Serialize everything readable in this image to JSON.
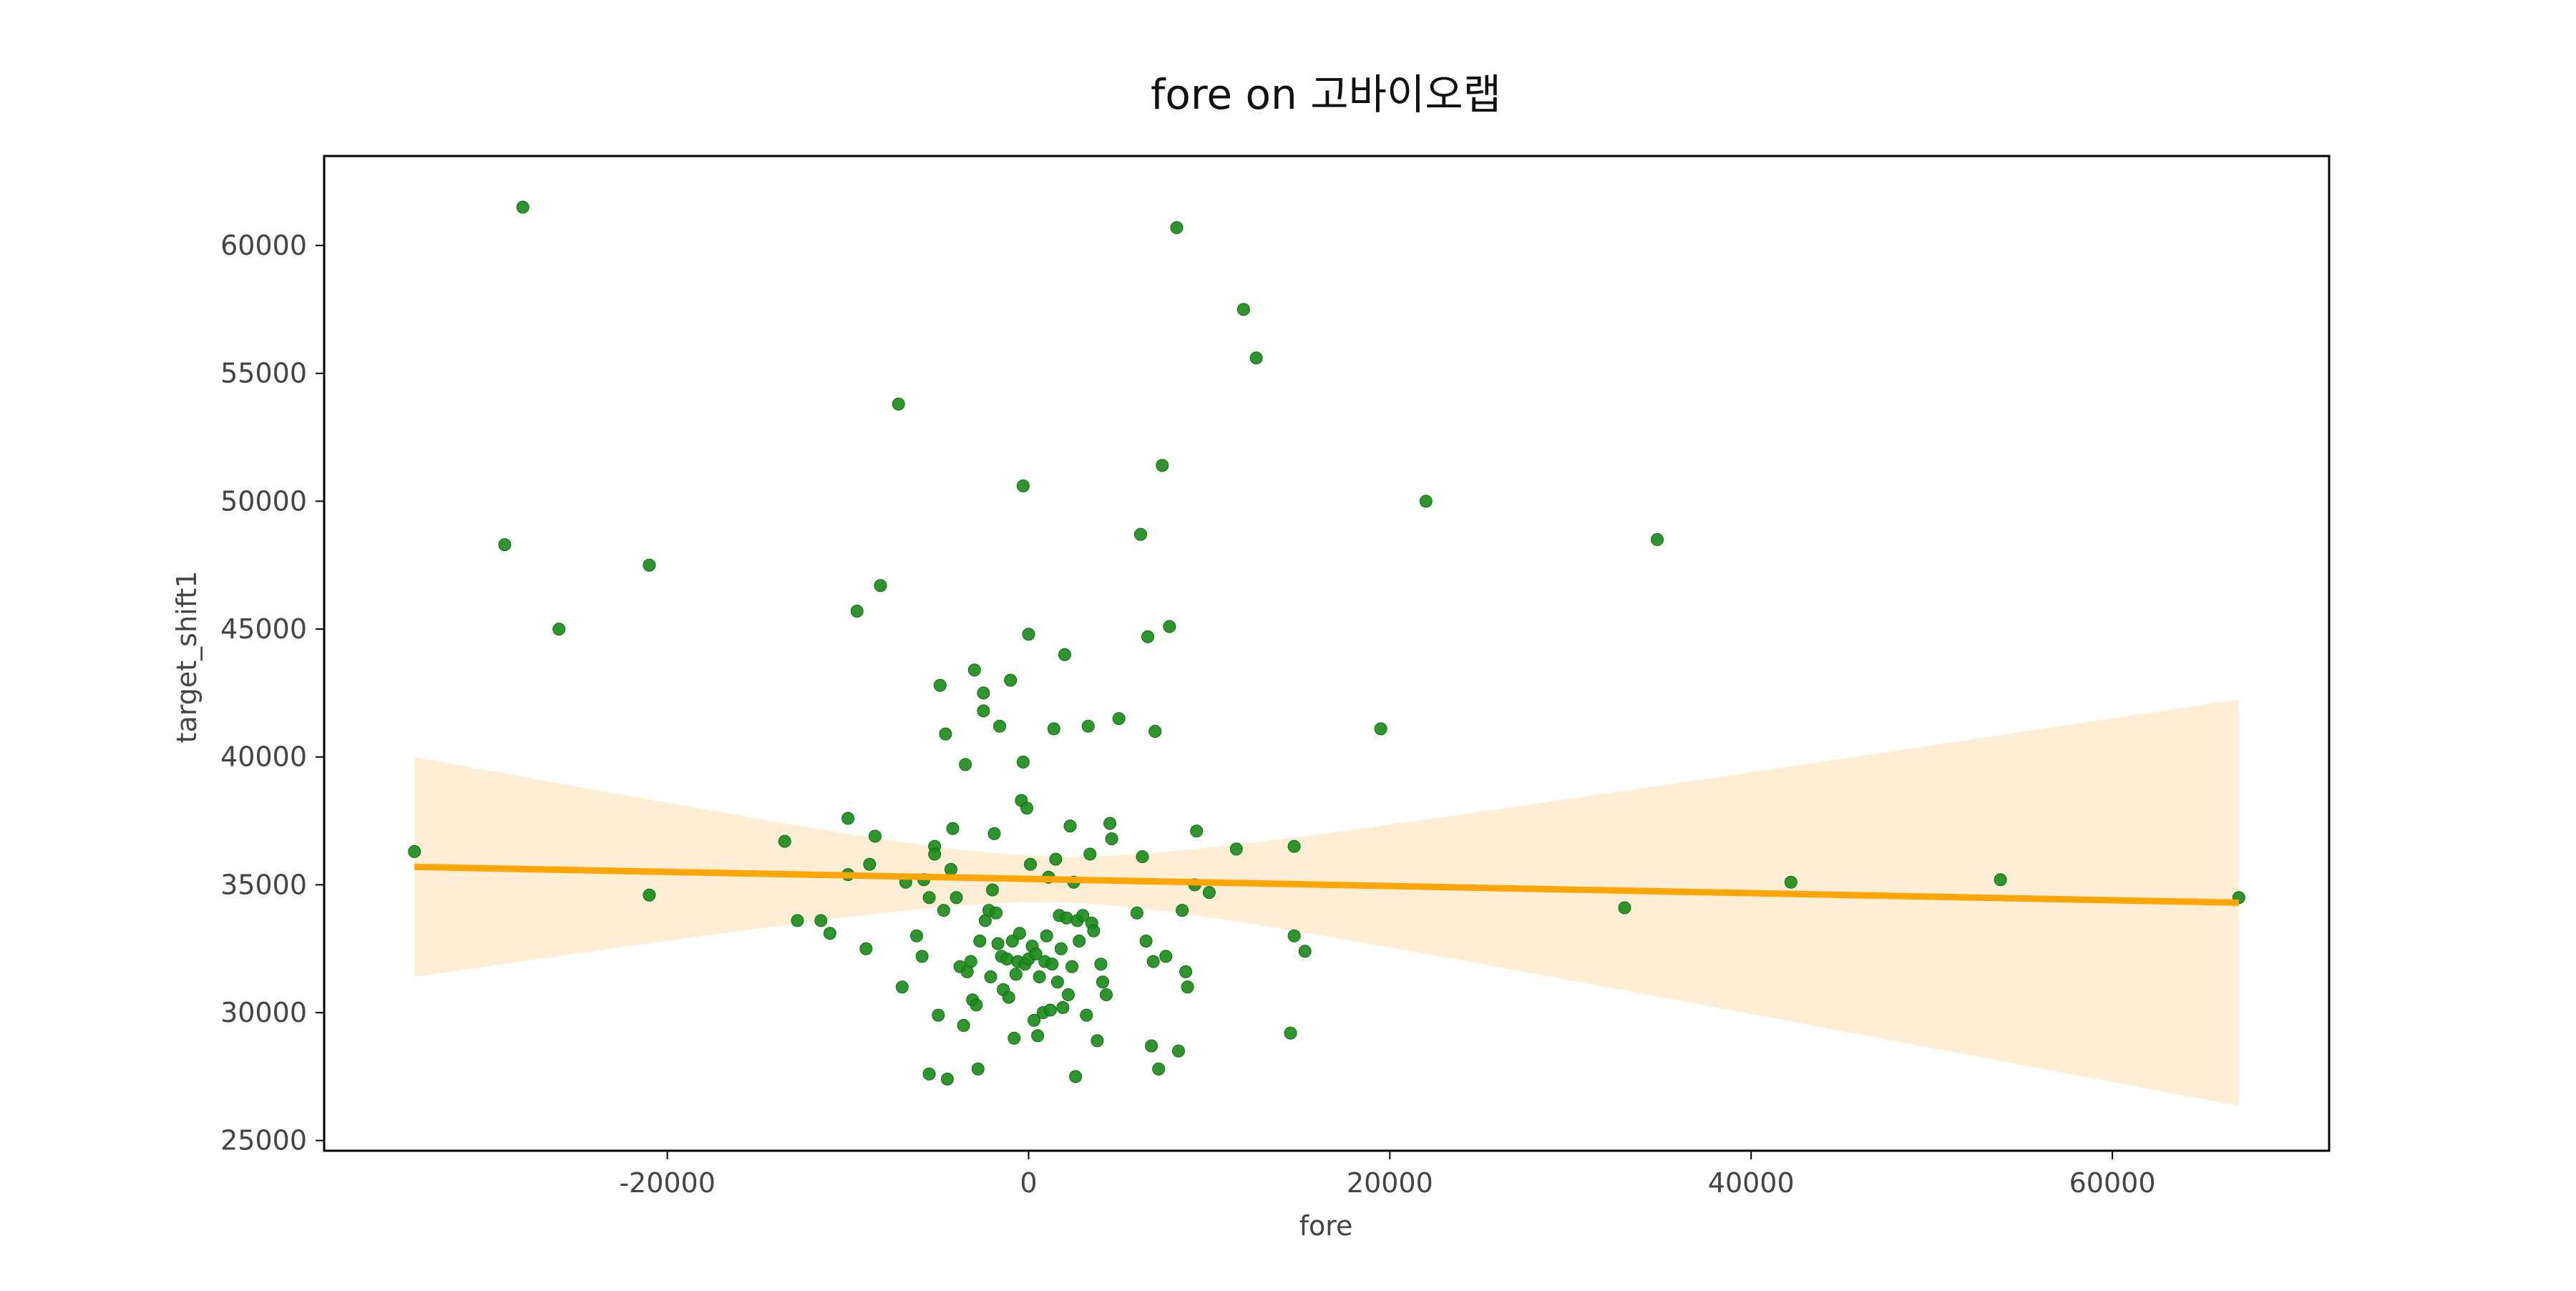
{
  "chart_data": {
    "type": "scatter",
    "title": "fore on 고바이오랩",
    "xlabel": "fore",
    "ylabel": "target_shift1",
    "xlim": [
      -39000,
      72000
    ],
    "ylim": [
      24600,
      63500
    ],
    "xticks": [
      -20000,
      0,
      20000,
      40000,
      60000
    ],
    "xtick_labels": [
      "-20000",
      "0",
      "20000",
      "40000",
      "60000"
    ],
    "yticks": [
      25000,
      30000,
      35000,
      40000,
      45000,
      50000,
      55000,
      60000
    ],
    "ytick_labels": [
      "25000",
      "30000",
      "35000",
      "40000",
      "45000",
      "50000",
      "55000",
      "60000"
    ],
    "grid": false,
    "colors": {
      "points": "#1a8a1a",
      "regression": "#ffa500",
      "band": "#ffeed6",
      "frame": "#000000"
    },
    "regression": {
      "x": [
        -34000,
        67000
      ],
      "y": [
        35700,
        34300
      ],
      "band_upper": [
        39900,
        42200
      ],
      "band_lower": [
        31300,
        26300
      ],
      "band_center_x": 1500
    },
    "points": [
      [
        -34000,
        36300
      ],
      [
        -28000,
        61500
      ],
      [
        -29000,
        48300
      ],
      [
        -26000,
        45000
      ],
      [
        -21000,
        47500
      ],
      [
        -21000,
        34600
      ],
      [
        -13500,
        36700
      ],
      [
        -12800,
        33600
      ],
      [
        -11500,
        33600
      ],
      [
        -11000,
        33100
      ],
      [
        -10000,
        37600
      ],
      [
        -10000,
        35400
      ],
      [
        -9500,
        45700
      ],
      [
        -9000,
        32500
      ],
      [
        -8800,
        35800
      ],
      [
        -8500,
        36900
      ],
      [
        -8200,
        46700
      ],
      [
        -7200,
        53800
      ],
      [
        -7000,
        31000
      ],
      [
        -6800,
        35100
      ],
      [
        -6200,
        33000
      ],
      [
        -5900,
        32200
      ],
      [
        -5800,
        35200
      ],
      [
        -5500,
        27600
      ],
      [
        -5500,
        34500
      ],
      [
        -5200,
        36500
      ],
      [
        -5200,
        36200
      ],
      [
        -5000,
        29900
      ],
      [
        -4900,
        42800
      ],
      [
        -4700,
        34000
      ],
      [
        -4600,
        40900
      ],
      [
        -4500,
        27400
      ],
      [
        -4300,
        35600
      ],
      [
        -4200,
        37200
      ],
      [
        -4000,
        34500
      ],
      [
        -3800,
        31800
      ],
      [
        -3600,
        29500
      ],
      [
        -3500,
        39700
      ],
      [
        -3400,
        31600
      ],
      [
        -3200,
        32000
      ],
      [
        -3100,
        30500
      ],
      [
        -3000,
        43400
      ],
      [
        -2900,
        30300
      ],
      [
        -2800,
        27800
      ],
      [
        -2700,
        32800
      ],
      [
        -2500,
        42500
      ],
      [
        -2500,
        41800
      ],
      [
        -2400,
        33600
      ],
      [
        -2200,
        34000
      ],
      [
        -2100,
        31400
      ],
      [
        -2000,
        34800
      ],
      [
        -1900,
        37000
      ],
      [
        -1800,
        33900
      ],
      [
        -1700,
        32700
      ],
      [
        -1600,
        41200
      ],
      [
        -1500,
        32200
      ],
      [
        -1400,
        30900
      ],
      [
        -1200,
        32100
      ],
      [
        -1100,
        30600
      ],
      [
        -1000,
        43000
      ],
      [
        -900,
        32800
      ],
      [
        -800,
        29000
      ],
      [
        -700,
        31500
      ],
      [
        -600,
        32000
      ],
      [
        -500,
        33100
      ],
      [
        -400,
        38300
      ],
      [
        -300,
        50600
      ],
      [
        -300,
        39800
      ],
      [
        -200,
        31900
      ],
      [
        -100,
        38000
      ],
      [
        0,
        44800
      ],
      [
        0,
        32100
      ],
      [
        100,
        35800
      ],
      [
        200,
        32600
      ],
      [
        300,
        29700
      ],
      [
        400,
        32300
      ],
      [
        500,
        29100
      ],
      [
        600,
        31400
      ],
      [
        800,
        30000
      ],
      [
        900,
        32000
      ],
      [
        1000,
        33000
      ],
      [
        1100,
        35300
      ],
      [
        1200,
        30100
      ],
      [
        1300,
        31900
      ],
      [
        1400,
        41100
      ],
      [
        1500,
        36000
      ],
      [
        1600,
        31200
      ],
      [
        1700,
        33800
      ],
      [
        1800,
        32500
      ],
      [
        1900,
        30200
      ],
      [
        2000,
        44000
      ],
      [
        2100,
        33700
      ],
      [
        2200,
        30700
      ],
      [
        2300,
        37300
      ],
      [
        2400,
        31800
      ],
      [
        2500,
        35100
      ],
      [
        2600,
        27500
      ],
      [
        2700,
        33600
      ],
      [
        2800,
        32800
      ],
      [
        3000,
        33800
      ],
      [
        3200,
        29900
      ],
      [
        3300,
        41200
      ],
      [
        3400,
        36200
      ],
      [
        3500,
        33500
      ],
      [
        3600,
        33200
      ],
      [
        3800,
        28900
      ],
      [
        4000,
        31900
      ],
      [
        4100,
        31200
      ],
      [
        4300,
        30700
      ],
      [
        4500,
        37400
      ],
      [
        4600,
        36800
      ],
      [
        5000,
        41500
      ],
      [
        6000,
        33900
      ],
      [
        6200,
        48700
      ],
      [
        6300,
        36100
      ],
      [
        6500,
        32800
      ],
      [
        6600,
        44700
      ],
      [
        6800,
        28700
      ],
      [
        6900,
        32000
      ],
      [
        7000,
        41000
      ],
      [
        7200,
        27800
      ],
      [
        7400,
        51400
      ],
      [
        7600,
        32200
      ],
      [
        7800,
        45100
      ],
      [
        8200,
        60700
      ],
      [
        8300,
        28500
      ],
      [
        8500,
        34000
      ],
      [
        8700,
        31600
      ],
      [
        8800,
        31000
      ],
      [
        9200,
        35000
      ],
      [
        9300,
        37100
      ],
      [
        10000,
        34700
      ],
      [
        11500,
        36400
      ],
      [
        11900,
        57500
      ],
      [
        12600,
        55600
      ],
      [
        14500,
        29200
      ],
      [
        14700,
        33000
      ],
      [
        14700,
        36500
      ],
      [
        15300,
        32400
      ],
      [
        19500,
        41100
      ],
      [
        22000,
        50000
      ],
      [
        33000,
        34100
      ],
      [
        34800,
        48500
      ],
      [
        42200,
        35100
      ],
      [
        53800,
        35200
      ],
      [
        67000,
        34500
      ]
    ]
  }
}
